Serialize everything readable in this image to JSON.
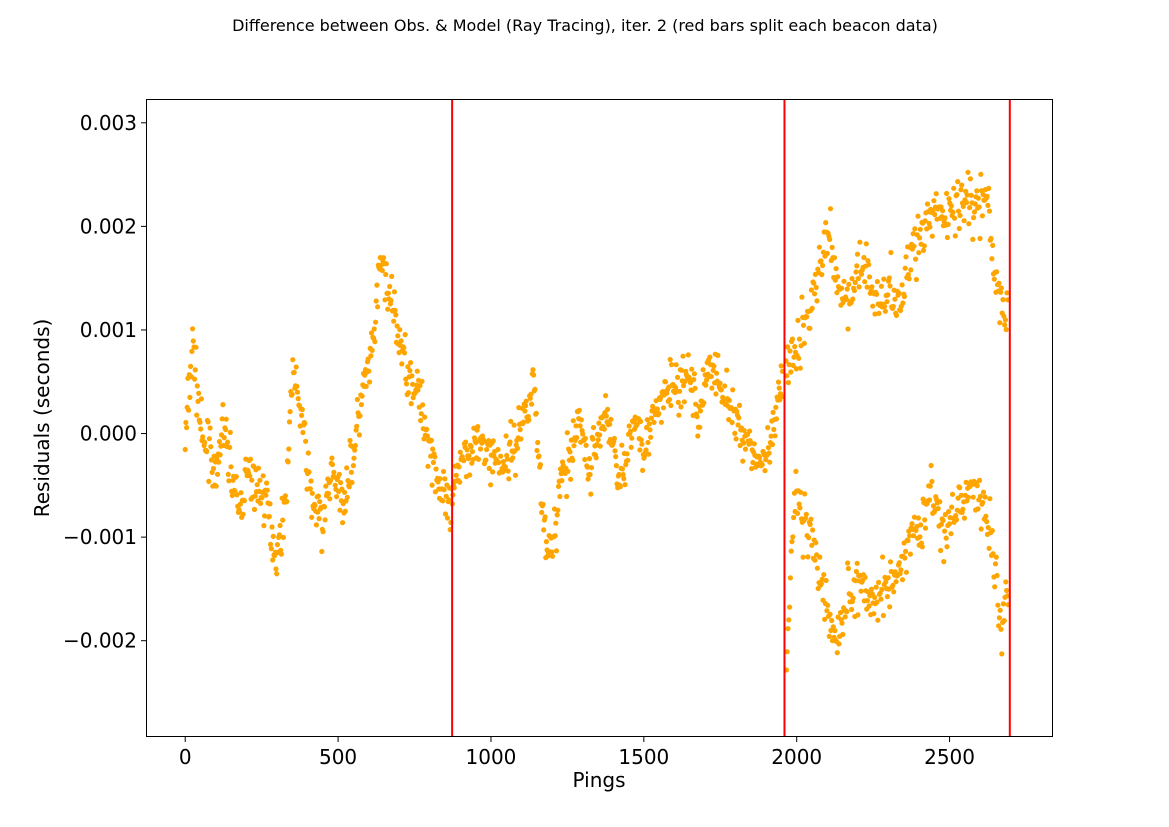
{
  "chart_data": {
    "type": "scatter",
    "title": "Difference between Obs. & Model (Ray Tracing), iter. 2 (red bars split each beacon data)",
    "xlabel": "Pings",
    "ylabel": "Residuals (seconds)",
    "xlim": [
      -125,
      2835
    ],
    "ylim": [
      -0.00292,
      0.00322
    ],
    "xticks": [
      0,
      500,
      1000,
      1500,
      2000,
      2500
    ],
    "xtick_labels": [
      "0",
      "500",
      "1000",
      "1500",
      "2000",
      "2500"
    ],
    "yticks": [
      -0.002,
      -0.001,
      0.0,
      0.001,
      0.002,
      0.003
    ],
    "ytick_labels": [
      "−0.002",
      "−0.001",
      "0.000",
      "0.001",
      "0.002",
      "0.003"
    ],
    "marker_color": "#FFA500",
    "split_line_color": "#FF0000",
    "beacon_splits": [
      873,
      1960,
      2697
    ],
    "grid": false,
    "series": [
      {
        "trend": [
          [
            0,
            -0.0001
          ],
          [
            25,
            0.0009
          ],
          [
            40,
            0.0004
          ],
          [
            60,
            -0.0002
          ],
          [
            80,
            0.0
          ],
          [
            100,
            -0.0006
          ],
          [
            120,
            0.0001
          ],
          [
            150,
            -0.0003
          ],
          [
            175,
            -0.0008
          ],
          [
            200,
            -0.0004
          ],
          [
            230,
            -0.0005
          ],
          [
            260,
            -0.0006
          ],
          [
            300,
            -0.0012
          ],
          [
            330,
            -0.0006
          ],
          [
            350,
            0.0006
          ],
          [
            380,
            0.0002
          ],
          [
            410,
            -0.0006
          ],
          [
            450,
            -0.0009
          ],
          [
            480,
            -0.0003
          ],
          [
            510,
            -0.0007
          ],
          [
            550,
            -0.0002
          ],
          [
            580,
            0.0004
          ],
          [
            610,
            0.0007
          ],
          [
            640,
            0.0017
          ],
          [
            670,
            0.0013
          ],
          [
            700,
            0.0009
          ],
          [
            730,
            0.0006
          ],
          [
            760,
            0.0004
          ],
          [
            800,
            -0.0001
          ],
          [
            840,
            -0.0006
          ],
          [
            870,
            -0.0008
          ],
          [
            900,
            -0.0002
          ],
          [
            950,
            -0.0001
          ],
          [
            1000,
            -0.0002
          ],
          [
            1040,
            -0.0003
          ],
          [
            1080,
            -0.0001
          ],
          [
            1110,
            0.0002
          ],
          [
            1140,
            0.0005
          ],
          [
            1170,
            -0.0008
          ],
          [
            1200,
            -0.0012
          ],
          [
            1230,
            -0.0004
          ],
          [
            1260,
            -0.0003
          ],
          [
            1290,
            0.0002
          ],
          [
            1320,
            -0.0004
          ],
          [
            1350,
            0.0
          ],
          [
            1380,
            0.0002
          ],
          [
            1410,
            -0.0003
          ],
          [
            1440,
            -0.0004
          ],
          [
            1470,
            0.0002
          ],
          [
            1500,
            -0.0001
          ],
          [
            1530,
            0.0001
          ],
          [
            1560,
            0.0003
          ],
          [
            1590,
            0.0005
          ],
          [
            1620,
            0.0004
          ],
          [
            1650,
            0.0006
          ],
          [
            1680,
            0.0001
          ],
          [
            1710,
            0.0007
          ],
          [
            1740,
            0.0005
          ],
          [
            1770,
            0.0004
          ],
          [
            1800,
            0.0001
          ],
          [
            1830,
            0.0
          ],
          [
            1860,
            -0.0002
          ],
          [
            1890,
            -0.0003
          ],
          [
            1920,
            -0.0001
          ],
          [
            1950,
            0.0005
          ]
        ],
        "trend_upper": [
          [
            1965,
            0.0006
          ],
          [
            2000,
            0.0009
          ],
          [
            2040,
            0.0012
          ],
          [
            2080,
            0.0017
          ],
          [
            2110,
            0.0019
          ],
          [
            2140,
            0.0013
          ],
          [
            2180,
            0.0014
          ],
          [
            2220,
            0.0016
          ],
          [
            2260,
            0.0013
          ],
          [
            2300,
            0.0014
          ],
          [
            2340,
            0.0012
          ],
          [
            2380,
            0.0018
          ],
          [
            2420,
            0.0019
          ],
          [
            2460,
            0.0022
          ],
          [
            2500,
            0.0021
          ],
          [
            2540,
            0.0023
          ],
          [
            2580,
            0.0022
          ],
          [
            2620,
            0.0024
          ],
          [
            2650,
            0.0014
          ],
          [
            2690,
            0.0011
          ]
        ],
        "trend_lower": [
          [
            1965,
            -0.0024
          ],
          [
            1990,
            -0.0006
          ],
          [
            2020,
            -0.0008
          ],
          [
            2060,
            -0.0012
          ],
          [
            2100,
            -0.0017
          ],
          [
            2130,
            -0.002
          ],
          [
            2160,
            -0.0016
          ],
          [
            2200,
            -0.0014
          ],
          [
            2240,
            -0.0016
          ],
          [
            2280,
            -0.0015
          ],
          [
            2320,
            -0.0014
          ],
          [
            2360,
            -0.001
          ],
          [
            2400,
            -0.0009
          ],
          [
            2440,
            -0.0006
          ],
          [
            2480,
            -0.001
          ],
          [
            2520,
            -0.0007
          ],
          [
            2560,
            -0.0005
          ],
          [
            2600,
            -0.0006
          ],
          [
            2640,
            -0.0011
          ],
          [
            2670,
            -0.0019
          ],
          [
            2690,
            -0.0015
          ]
        ]
      }
    ]
  }
}
